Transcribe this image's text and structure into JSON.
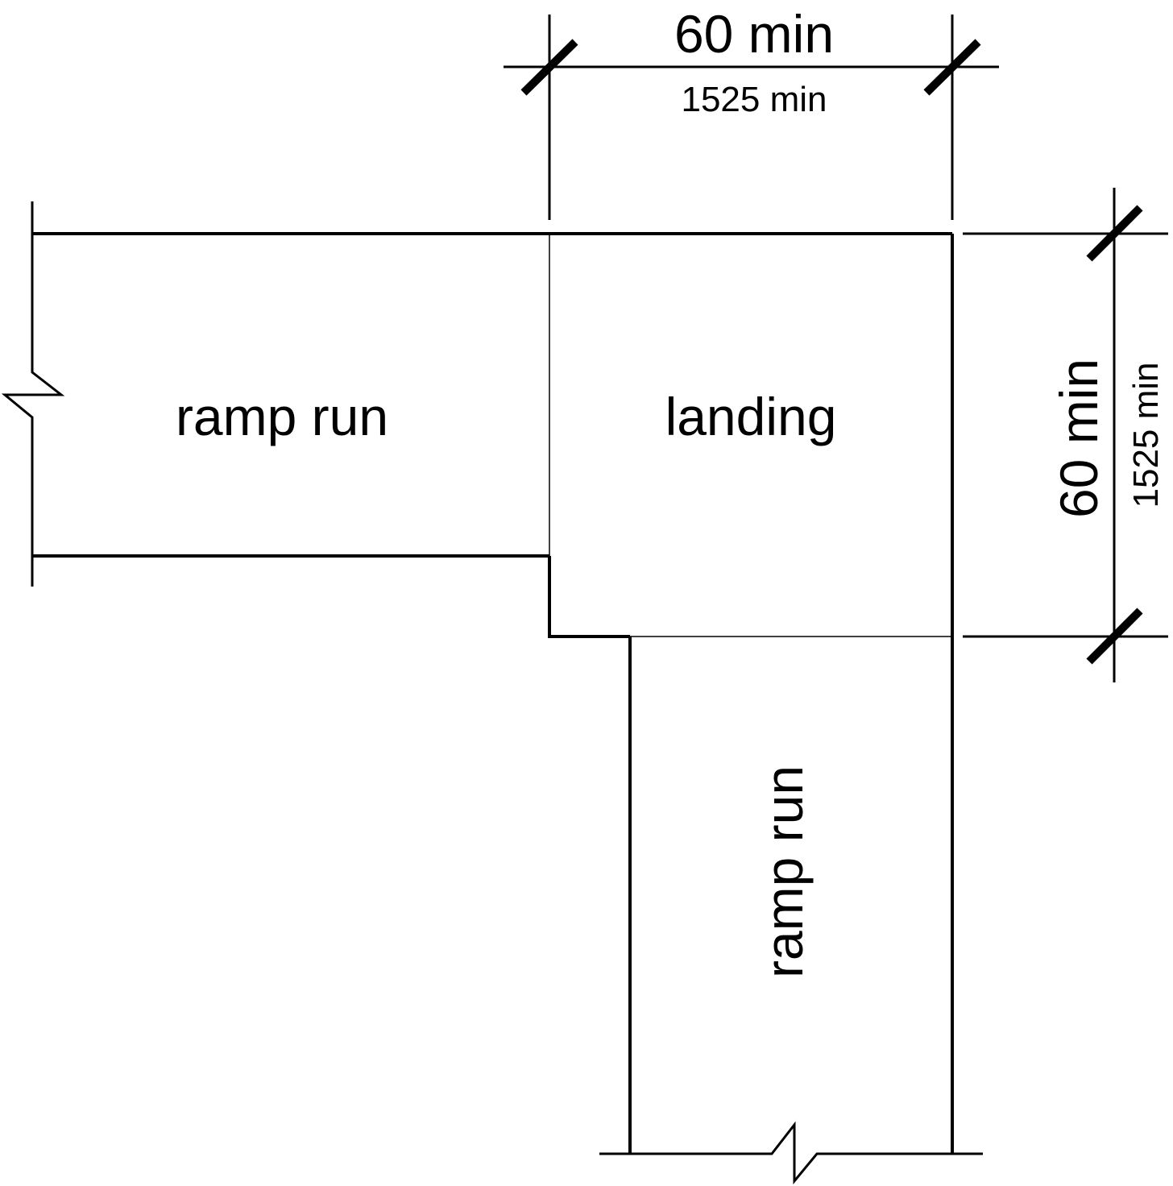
{
  "colors": {
    "stroke": "#000000",
    "background": "#ffffff"
  },
  "labels": {
    "ramp_run_top": "ramp run",
    "landing": "landing",
    "ramp_run_bottom": "ramp run"
  },
  "dimensions": {
    "width": {
      "imperial": "60 min",
      "metric": "1525 min"
    },
    "depth": {
      "imperial": "60 min",
      "metric": "1525 min"
    }
  }
}
